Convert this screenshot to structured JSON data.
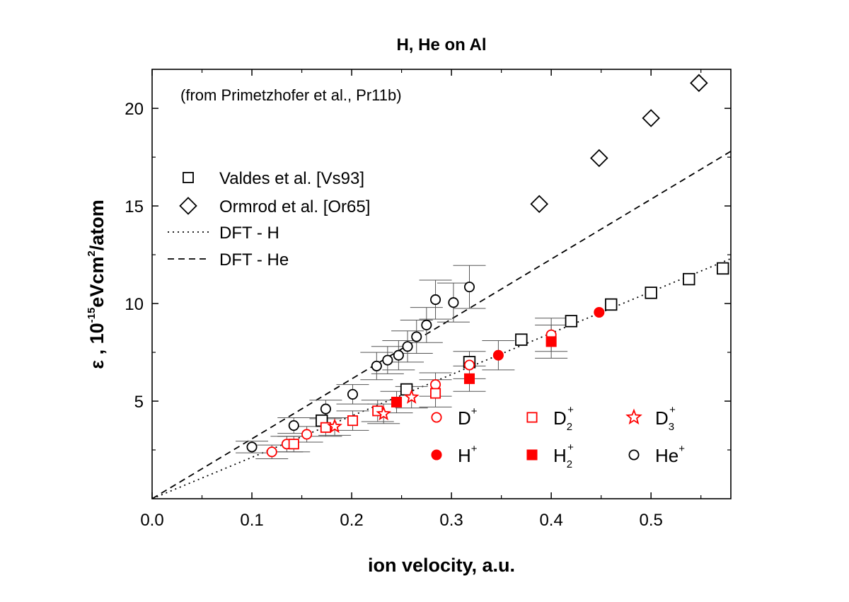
{
  "chart_data": {
    "type": "scatter",
    "title": "H, He on Al",
    "annotation": "(from Primetzhofer et al., Pr11b)",
    "xlabel": "ion velocity, a.u.",
    "ylabel": {
      "prefix": "ε , 10",
      "exp1": "-15",
      "mid": "eVcm",
      "exp2": "2",
      "suffix": "/atom"
    },
    "xlim": [
      0.0,
      0.58
    ],
    "ylim": [
      0,
      22
    ],
    "xticks": [
      0.0,
      0.1,
      0.2,
      0.3,
      0.4,
      0.5
    ],
    "xtick_labels": [
      "0.0",
      "0.1",
      "0.2",
      "0.3",
      "0.4",
      "0.5"
    ],
    "yticks": [
      5,
      10,
      15,
      20
    ],
    "ytick_labels": [
      "5",
      "10",
      "15",
      "20"
    ],
    "grid": false,
    "colors": {
      "black": "#000000",
      "red": "#ff0000",
      "errorbar": "#555555"
    },
    "legend": {
      "placement": "top-left",
      "entries": [
        {
          "label": "Valdes et al. [Vs93]",
          "marker": "square-open",
          "color": "#000000"
        },
        {
          "label": "Ormrod et al. [Or65]",
          "marker": "diamond-open",
          "color": "#000000"
        },
        {
          "label": "DFT - H",
          "line": "dotted",
          "color": "#000000"
        },
        {
          "label": "DFT - He",
          "line": "dashed",
          "color": "#000000"
        }
      ]
    },
    "ion_legend": {
      "placement": "bottom-right",
      "entries": [
        {
          "base": "D",
          "sub": "",
          "sup": "+",
          "marker": "circle-open",
          "color": "#ff0000"
        },
        {
          "base": "D",
          "sub": "2",
          "sup": "+",
          "marker": "square-open",
          "color": "#ff0000"
        },
        {
          "base": "D",
          "sub": "3",
          "sup": "+",
          "marker": "star-open",
          "color": "#ff0000"
        },
        {
          "base": "H",
          "sub": "",
          "sup": "+",
          "marker": "circle-filled",
          "color": "#ff0000"
        },
        {
          "base": "H",
          "sub": "2",
          "sup": "+",
          "marker": "square-filled",
          "color": "#ff0000"
        },
        {
          "base": "He",
          "sub": "",
          "sup": "+",
          "marker": "circle-open",
          "color": "#000000"
        }
      ]
    },
    "lines": [
      {
        "name": "DFT - H",
        "style": "dotted",
        "x": [
          0.0,
          0.58
        ],
        "y": [
          0.0,
          12.3
        ]
      },
      {
        "name": "DFT - He",
        "style": "dashed",
        "x": [
          0.0,
          0.58
        ],
        "y": [
          0.0,
          17.8
        ]
      }
    ],
    "series": [
      {
        "name": "Valdes et al. [Vs93]",
        "marker": "square-open",
        "color": "#000000",
        "x": [
          0.17,
          0.255,
          0.318,
          0.37,
          0.42,
          0.46,
          0.5,
          0.538,
          0.572
        ],
        "y": [
          4.0,
          5.6,
          7.0,
          8.15,
          9.1,
          9.95,
          10.55,
          11.25,
          11.8
        ]
      },
      {
        "name": "Ormrod et al. [Or65]",
        "marker": "diamond-open",
        "color": "#000000",
        "x": [
          0.388,
          0.448,
          0.5,
          0.548
        ],
        "y": [
          15.1,
          17.45,
          19.5,
          21.3
        ]
      },
      {
        "name": "D+",
        "marker": "circle-open",
        "color": "#ff0000",
        "x": [
          0.12,
          0.135,
          0.155,
          0.284,
          0.318,
          0.4
        ],
        "y": [
          2.4,
          2.8,
          3.3,
          5.85,
          6.85,
          8.4
        ],
        "yerr": [
          0.35,
          0.4,
          0.4,
          0.6,
          0.7,
          0.85
        ]
      },
      {
        "name": "D2+",
        "marker": "square-open",
        "color": "#ff0000",
        "x": [
          0.142,
          0.174,
          0.201,
          0.226,
          0.284
        ],
        "y": [
          2.8,
          3.65,
          4.0,
          4.5,
          5.4
        ],
        "yerr": [
          0.4,
          0.45,
          0.5,
          0.55,
          0.7
        ]
      },
      {
        "name": "D3+",
        "marker": "star-open",
        "color": "#ff0000",
        "x": [
          0.183,
          0.232,
          0.26
        ],
        "y": [
          3.7,
          4.35,
          5.2
        ],
        "yerr": [
          0.45,
          0.5,
          0.55
        ]
      },
      {
        "name": "H+",
        "marker": "circle-filled",
        "color": "#ff0000",
        "x": [
          0.347,
          0.448
        ],
        "y": [
          7.35,
          9.55
        ],
        "yerr": [
          0.75,
          0.0
        ]
      },
      {
        "name": "H2+",
        "marker": "square-filled",
        "color": "#ff0000",
        "x": [
          0.245,
          0.318,
          0.4
        ],
        "y": [
          4.95,
          6.15,
          8.05
        ],
        "yerr": [
          0.55,
          0.65,
          0.85
        ]
      },
      {
        "name": "He+",
        "marker": "circle-open",
        "color": "#000000",
        "x": [
          0.1,
          0.142,
          0.174,
          0.201,
          0.225,
          0.236,
          0.247,
          0.256,
          0.265,
          0.275,
          0.284,
          0.302,
          0.318
        ],
        "y": [
          2.65,
          3.75,
          4.6,
          5.35,
          6.8,
          7.1,
          7.35,
          7.8,
          8.3,
          8.9,
          10.2,
          10.05,
          10.85
        ],
        "yerr": [
          0.3,
          0.4,
          0.45,
          0.5,
          0.7,
          0.7,
          0.75,
          0.8,
          0.85,
          0.9,
          1.0,
          1.0,
          1.1
        ]
      }
    ]
  }
}
